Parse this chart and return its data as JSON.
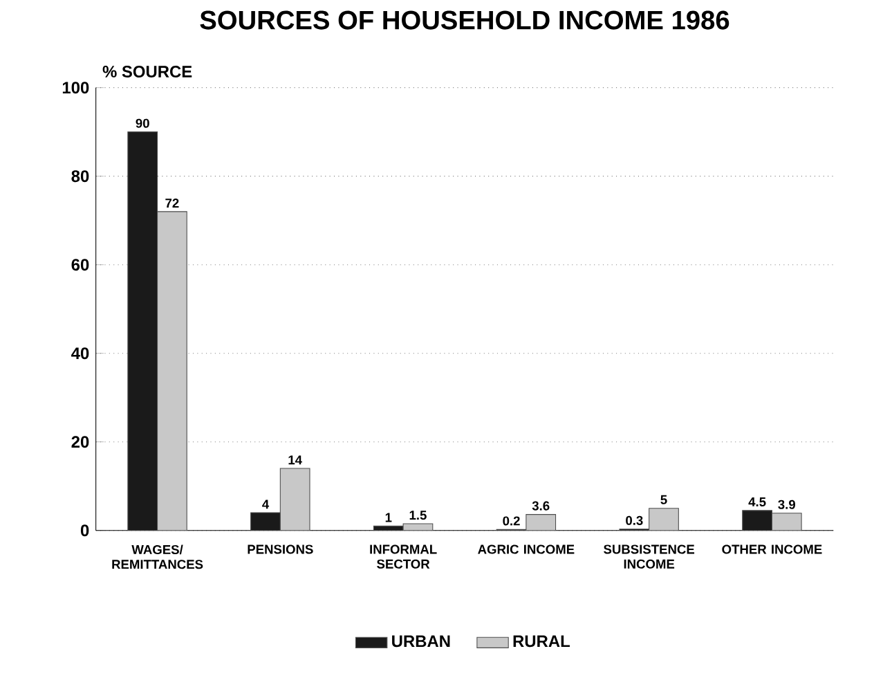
{
  "chart_data": {
    "type": "bar",
    "title": "SOURCES OF HOUSEHOLD INCOME 1986",
    "ylabel": "% SOURCE",
    "categories": [
      "WAGES/ REMITTANCES",
      "PENSIONS",
      "INFORMAL SECTOR",
      "AGRIC INCOME",
      "SUBSISTENCE INCOME",
      "OTHER INCOME"
    ],
    "series": [
      {
        "name": "URBAN",
        "color": "#1a1a1a",
        "values": [
          90,
          4,
          1,
          0.2,
          0.3,
          4.5
        ]
      },
      {
        "name": "RURAL",
        "color": "#c8c8c8",
        "values": [
          72,
          14,
          1.5,
          3.6,
          5,
          3.9
        ]
      }
    ],
    "ylim": [
      0,
      100
    ],
    "yticks": [
      0,
      20,
      40,
      60,
      80,
      100
    ],
    "grid": "y",
    "legend": "bottom",
    "data_labels": true
  }
}
